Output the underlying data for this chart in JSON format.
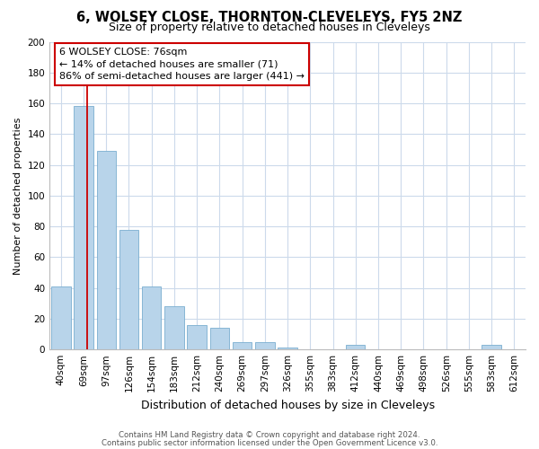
{
  "title": "6, WOLSEY CLOSE, THORNTON-CLEVELEYS, FY5 2NZ",
  "subtitle": "Size of property relative to detached houses in Cleveleys",
  "xlabel": "Distribution of detached houses by size in Cleveleys",
  "ylabel": "Number of detached properties",
  "bar_labels": [
    "40sqm",
    "69sqm",
    "97sqm",
    "126sqm",
    "154sqm",
    "183sqm",
    "212sqm",
    "240sqm",
    "269sqm",
    "297sqm",
    "326sqm",
    "355sqm",
    "383sqm",
    "412sqm",
    "440sqm",
    "469sqm",
    "498sqm",
    "526sqm",
    "555sqm",
    "583sqm",
    "612sqm"
  ],
  "bar_values": [
    41,
    158,
    129,
    78,
    41,
    28,
    16,
    14,
    5,
    5,
    1,
    0,
    0,
    3,
    0,
    0,
    0,
    0,
    0,
    3,
    0
  ],
  "bar_color": "#b8d4ea",
  "bar_edge_color": "#7aaed0",
  "marker_line_color": "#cc0000",
  "annotation_text": "6 WOLSEY CLOSE: 76sqm\n← 14% of detached houses are smaller (71)\n86% of semi-detached houses are larger (441) →",
  "annotation_box_facecolor": "#ffffff",
  "annotation_border_color": "#cc0000",
  "ylim": [
    0,
    200
  ],
  "yticks": [
    0,
    20,
    40,
    60,
    80,
    100,
    120,
    140,
    160,
    180,
    200
  ],
  "footer_line1": "Contains HM Land Registry data © Crown copyright and database right 2024.",
  "footer_line2": "Contains public sector information licensed under the Open Government Licence v3.0.",
  "bg_color": "#ffffff",
  "grid_color": "#ccdaeb",
  "title_fontsize": 10.5,
  "subtitle_fontsize": 9,
  "ylabel_fontsize": 8,
  "xlabel_fontsize": 9,
  "tick_fontsize": 7.5,
  "footer_fontsize": 6.2
}
